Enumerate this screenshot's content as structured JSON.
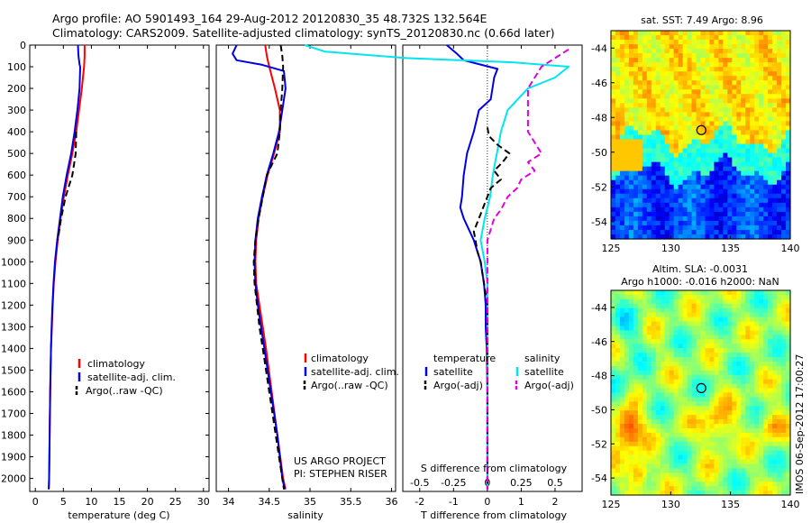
{
  "header": {
    "line1": "Argo profile: AO 5901493_164 29-Aug-2012 20120830_35 48.732S 132.564E",
    "line2": "Climatology: CARS2009. Satellite-adjusted climatology: synTS_20120830.nc (0.66d later)"
  },
  "colors": {
    "climatology": "#ff0000",
    "satellite": "#0000e0",
    "argo": "#000000",
    "sal_satellite": "#00e5ee",
    "sal_argo": "#e000e0"
  },
  "chart_data": [
    {
      "type": "line",
      "id": "temperature",
      "xlabel": "temperature (deg C)",
      "ylim": [
        2060,
        0
      ],
      "xlim": [
        -1,
        31
      ],
      "xticks": [
        "0",
        "5",
        "10",
        "15",
        "20",
        "25",
        "30"
      ],
      "xtick_values": [
        0,
        5,
        10,
        15,
        20,
        25,
        30
      ],
      "yticks": [
        "0",
        "100",
        "200",
        "300",
        "400",
        "500",
        "600",
        "700",
        "800",
        "900",
        "1000",
        "1100",
        "1200",
        "1300",
        "1400",
        "1500",
        "1600",
        "1700",
        "1800",
        "1900",
        "2000"
      ],
      "legend": [
        "climatology",
        "satellite-adj. clim.",
        "Argo(..raw -QC)"
      ],
      "series": [
        {
          "name": "climatology",
          "depth": [
            0,
            50,
            100,
            200,
            300,
            400,
            500,
            600,
            700,
            800,
            900,
            1000,
            1100,
            1200,
            1300,
            1400,
            1600,
            1800,
            2000,
            2050
          ],
          "values": [
            8.8,
            8.8,
            8.7,
            8.3,
            7.8,
            7.3,
            6.6,
            5.8,
            5.1,
            4.5,
            4.0,
            3.6,
            3.3,
            3.1,
            2.95,
            2.8,
            2.65,
            2.55,
            2.45,
            2.4
          ]
        },
        {
          "name": "satellite-adj. clim.",
          "depth": [
            0,
            50,
            90,
            100,
            200,
            300,
            400,
            500,
            600,
            700,
            800,
            900,
            1000,
            1100,
            1200,
            1300,
            1400,
            1600,
            1800,
            2000,
            2050
          ],
          "values": [
            7.6,
            7.7,
            7.9,
            8.0,
            7.9,
            7.5,
            7.0,
            6.4,
            5.6,
            4.9,
            4.4,
            3.9,
            3.5,
            3.25,
            3.05,
            2.9,
            2.8,
            2.65,
            2.55,
            2.45,
            2.4
          ]
        },
        {
          "name": "Argo(..raw -QC)",
          "depth": [
            400,
            500,
            600,
            700,
            800,
            900
          ],
          "values": [
            7.3,
            7.2,
            6.6,
            5.4,
            4.6,
            4.0
          ]
        }
      ]
    },
    {
      "type": "line",
      "id": "salinity",
      "xlabel": "salinity",
      "ylim": [
        2060,
        0
      ],
      "xlim": [
        33.85,
        36.05
      ],
      "xticks": [
        "34",
        "34.5",
        "35",
        "35.5",
        "36"
      ],
      "xtick_values": [
        34,
        34.5,
        35,
        35.5,
        36
      ],
      "legend": [
        "climatology",
        "satellite-adj. clim.",
        "Argo(..raw -QC)"
      ],
      "annotations": [
        "US ARGO PROJECT",
        "PI: STEPHEN RISER"
      ],
      "series": [
        {
          "name": "climatology",
          "depth": [
            0,
            50,
            100,
            200,
            300,
            400,
            500,
            600,
            700,
            800,
            900,
            1000,
            1100,
            1200,
            1300,
            1400,
            1600,
            1800,
            2000,
            2050
          ],
          "values": [
            34.45,
            34.47,
            34.5,
            34.57,
            34.63,
            34.63,
            34.56,
            34.48,
            34.42,
            34.37,
            34.34,
            34.33,
            34.34,
            34.38,
            34.42,
            34.46,
            34.53,
            34.6,
            34.67,
            34.7
          ]
        },
        {
          "name": "satellite-adj. clim.",
          "depth": [
            0,
            40,
            70,
            90,
            120,
            200,
            300,
            400,
            500,
            600,
            700,
            800,
            900,
            1000,
            1100,
            1200,
            1300,
            1400,
            1600,
            1800,
            2000,
            2050
          ],
          "values": [
            34.1,
            34.05,
            34.1,
            34.4,
            34.68,
            34.7,
            34.66,
            34.62,
            34.55,
            34.47,
            34.41,
            34.36,
            34.33,
            34.32,
            34.33,
            34.36,
            34.4,
            34.44,
            34.52,
            34.6,
            34.66,
            34.69
          ]
        },
        {
          "name": "Argo(..raw -QC)",
          "depth": [
            0,
            50,
            100,
            200,
            300,
            400,
            500,
            600,
            700,
            800,
            900,
            1000,
            1100,
            1200,
            1300,
            1400,
            1600,
            1800,
            2000,
            2050
          ],
          "values": [
            34.64,
            34.66,
            34.67,
            34.66,
            34.64,
            34.63,
            34.6,
            34.47,
            34.42,
            34.37,
            34.33,
            34.31,
            34.32,
            34.35,
            34.38,
            34.42,
            34.5,
            34.58,
            34.66,
            34.68
          ]
        }
      ]
    },
    {
      "type": "line",
      "id": "differences",
      "xlabel": "T difference from climatology",
      "xlabel_top": "S difference from climatology",
      "ylim": [
        2060,
        0
      ],
      "xlim": [
        -2.5,
        2.8
      ],
      "xticks": [
        "-2",
        "-1",
        "0",
        "1",
        "2"
      ],
      "xtick_values": [
        -2,
        -1,
        0,
        1,
        2
      ],
      "s_ticks": [
        "-0.5",
        "-0.25",
        "0",
        "0.25",
        "0.5"
      ],
      "s_tick_values": [
        -0.5,
        -0.25,
        0,
        0.25,
        0.5
      ],
      "legend_heads": [
        "temperature",
        "salinity"
      ],
      "legend": [
        "satellite",
        "Argo(-adj)",
        "satellite",
        "Argo(-adj)"
      ],
      "series": [
        {
          "name": "temperature satellite",
          "depth": [
            0,
            40,
            70,
            90,
            110,
            150,
            250,
            300,
            400,
            500,
            600,
            700,
            750,
            800,
            900,
            1000,
            1100,
            1200,
            1300,
            1400,
            1600,
            1800,
            2000,
            2050
          ],
          "values": [
            -1.2,
            -0.9,
            -0.7,
            -0.2,
            0.3,
            0.2,
            0.1,
            -0.25,
            -0.4,
            -0.6,
            -0.7,
            -0.75,
            -0.8,
            -0.7,
            -0.4,
            -0.2,
            -0.1,
            -0.05,
            -0.05,
            -0.02,
            0.0,
            0.0,
            0.0,
            0.0
          ]
        },
        {
          "name": "salinity satellite",
          "depth": [
            0,
            30,
            60,
            80,
            100,
            150,
            200,
            300,
            400,
            500,
            600,
            700,
            800,
            900,
            1000,
            1100,
            1200,
            1400,
            1600,
            1800,
            2000,
            2050
          ],
          "values": [
            -1.35,
            -1.2,
            -0.6,
            0.2,
            0.6,
            0.5,
            0.3,
            0.15,
            0.1,
            0.07,
            0.04,
            0.02,
            -0.02,
            -0.05,
            -0.02,
            0.0,
            0.0,
            0.0,
            0.0,
            0.0,
            0.0,
            0.0
          ]
        },
        {
          "name": "temperature Argo(-adj)",
          "depth": [
            380,
            420,
            460,
            500,
            540,
            580,
            620,
            660,
            700,
            740,
            780,
            820,
            860,
            900,
            950,
            1000,
            1050,
            1100,
            1150,
            1200,
            1300,
            1400,
            1500,
            1600,
            1800,
            2000,
            2050
          ],
          "values": [
            0.0,
            0.05,
            0.3,
            0.65,
            0.45,
            0.2,
            0.4,
            0.1,
            0.0,
            -0.1,
            -0.2,
            -0.3,
            -0.4,
            -0.35,
            -0.3,
            -0.2,
            -0.15,
            -0.1,
            -0.05,
            0.0,
            0.0,
            0.0,
            0.0,
            0.0,
            0.0,
            0.0,
            0.0
          ]
        },
        {
          "name": "salinity Argo(-adj)",
          "depth": [
            20,
            40,
            60,
            80,
            100,
            200,
            400,
            450,
            500,
            540,
            580,
            620,
            660,
            700,
            760,
            800,
            900,
            1000,
            1200,
            1400,
            1600,
            1800,
            2000,
            2050
          ],
          "values": [
            0.6,
            0.55,
            0.5,
            0.45,
            0.4,
            0.3,
            0.3,
            0.35,
            0.4,
            0.3,
            0.35,
            0.25,
            0.22,
            0.15,
            0.1,
            0.05,
            0.0,
            0.0,
            0.0,
            0.0,
            0.0,
            0.0,
            0.0,
            0.0
          ]
        }
      ]
    },
    {
      "type": "heatmap",
      "id": "sst_map",
      "title": "sat. SST: 7.49 Argo: 8.96",
      "xlim": [
        125,
        140
      ],
      "ylim": [
        -55,
        -43
      ],
      "xticks": [
        "125",
        "130",
        "135",
        "140"
      ],
      "xtick_values": [
        125,
        130,
        135,
        140
      ],
      "yticks": [
        "-44",
        "-46",
        "-48",
        "-50",
        "-52",
        "-54"
      ],
      "ytick_values": [
        -44,
        -46,
        -48,
        -50,
        -52,
        -54
      ],
      "marker": [
        132.564,
        -48.732
      ]
    },
    {
      "type": "heatmap",
      "id": "sla_map",
      "title": "Altim. SLA: -0.0031",
      "subtitle": "Argo h1000: -0.016 h2000: NaN",
      "side_label": "IMOS 06-Sep-2012 17:00:27",
      "xlim": [
        125,
        140
      ],
      "ylim": [
        -55,
        -43
      ],
      "xticks": [
        "125",
        "130",
        "135",
        "140"
      ],
      "xtick_values": [
        125,
        130,
        135,
        140
      ],
      "yticks": [
        "-44",
        "-46",
        "-48",
        "-50",
        "-52",
        "-54"
      ],
      "ytick_values": [
        -44,
        -46,
        -48,
        -50,
        -52,
        -54
      ],
      "marker": [
        132.564,
        -48.732
      ]
    }
  ]
}
